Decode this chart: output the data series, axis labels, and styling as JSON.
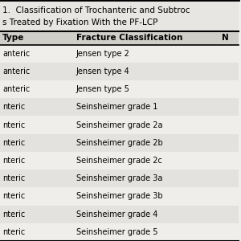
{
  "title_line1": "1.  Classification of Trochanteric and Subtroc",
  "title_line2": "s Treated by Fixation With the PF-LCP",
  "col1_header": "Type",
  "col2_header": "Fracture Classification",
  "col3_header": "N",
  "col1_data": [
    "anteric",
    "anteric",
    "anteric",
    "nteric",
    "nteric",
    "nteric",
    "nteric",
    "nteric",
    "nteric",
    "nteric",
    "nteric"
  ],
  "col2_data": [
    "Jensen type 2",
    "Jensen type 4",
    "Jensen type 5",
    "Seinsheimer grade 1",
    "Seinsheimer grade 2a",
    "Seinsheimer grade 2b",
    "Seinsheimer grade 2c",
    "Seinsheimer grade 3a",
    "Seinsheimer grade 3b",
    "Seinsheimer grade 4",
    "Seinsheimer grade 5"
  ],
  "bg_color": "#f0eeeb",
  "header_bg": "#d0cec9",
  "title_bg": "#e8e6e2",
  "stripe_color": "#e4e2de",
  "font_size": 7.0,
  "header_font_size": 7.5,
  "title_font_size": 7.5
}
